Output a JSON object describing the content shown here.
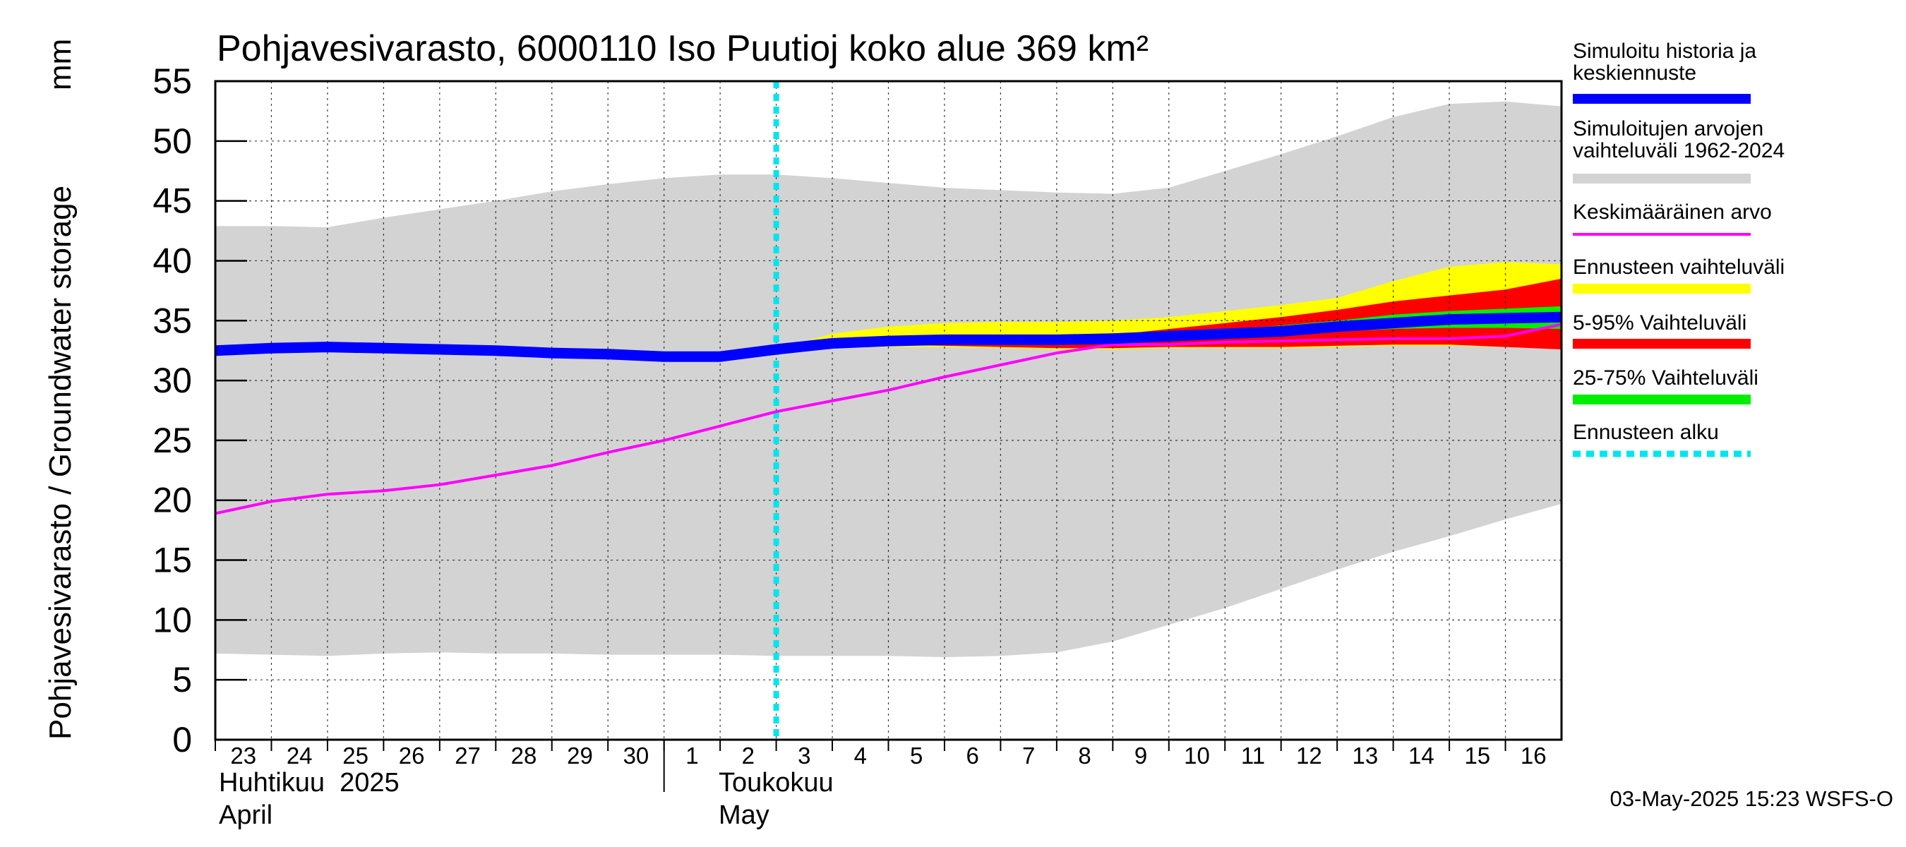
{
  "chart_data": {
    "type": "area",
    "title": "Pohjavesivarasto, 6000110 Iso Puutioj koko alue 369 km²",
    "ylabel": "Pohjavesivarasto / Groundwater storage",
    "yunit": "mm",
    "ylim": [
      0,
      55
    ],
    "yticks": [
      0,
      5,
      10,
      15,
      20,
      25,
      30,
      35,
      40,
      45,
      50,
      55
    ],
    "xlim": [
      "2025-04-23",
      "2025-05-17"
    ],
    "x_tick_labels": [
      "23",
      "24",
      "25",
      "26",
      "27",
      "28",
      "29",
      "30",
      "1",
      "2",
      "3",
      "4",
      "5",
      "6",
      "7",
      "8",
      "9",
      "10",
      "11",
      "12",
      "13",
      "14",
      "15",
      "16"
    ],
    "month_labels": [
      {
        "fi": "Huhtikuu  2025",
        "en": "April"
      },
      {
        "fi": "Toukokuu",
        "en": "May"
      }
    ],
    "grid": true,
    "legend_position": "right",
    "forecast_start": "2025-05-03",
    "timestamp": "03-May-2025 15:23 WSFS-O",
    "legend": [
      {
        "label": "Simuloitu historia ja\nkeskiennuste",
        "color": "#0000ff",
        "style": "thick"
      },
      {
        "label": "Simuloitujen arvojen\nvaihteluväli 1962-2024",
        "color": "#d3d3d3",
        "style": "thick"
      },
      {
        "label": "Keskimääräinen arvo",
        "color": "#ff00ff",
        "style": "thin"
      },
      {
        "label": "Ennusteen vaihteluväli",
        "color": "#ffff00",
        "style": "thick"
      },
      {
        "label": "5-95% Vaihteluväli",
        "color": "#ff0000",
        "style": "thick"
      },
      {
        "label": "25-75% Vaihteluväli",
        "color": "#00ee00",
        "style": "thick"
      },
      {
        "label": "Ennusteen alku",
        "color": "#00e5ee",
        "style": "dotted"
      }
    ],
    "x": [
      "2025-04-23",
      "2025-04-24",
      "2025-04-25",
      "2025-04-26",
      "2025-04-27",
      "2025-04-28",
      "2025-04-29",
      "2025-04-30",
      "2025-05-01",
      "2025-05-02",
      "2025-05-03",
      "2025-05-04",
      "2025-05-05",
      "2025-05-06",
      "2025-05-07",
      "2025-05-08",
      "2025-05-09",
      "2025-05-10",
      "2025-05-11",
      "2025-05-12",
      "2025-05-13",
      "2025-05-14",
      "2025-05-15",
      "2025-05-16",
      "2025-05-17"
    ],
    "historical_range": {
      "min": [
        7.2,
        7.1,
        7.0,
        7.2,
        7.3,
        7.2,
        7.2,
        7.1,
        7.1,
        7.1,
        7.0,
        7.0,
        7.0,
        6.9,
        7.0,
        7.3,
        8.2,
        9.6,
        11.0,
        12.6,
        14.2,
        15.7,
        17.0,
        18.4,
        19.7
      ],
      "max": [
        42.9,
        42.9,
        42.8,
        43.6,
        44.3,
        45.0,
        45.8,
        46.4,
        46.9,
        47.2,
        47.2,
        46.9,
        46.5,
        46.1,
        45.9,
        45.7,
        45.6,
        46.1,
        47.5,
        48.9,
        50.4,
        52.0,
        53.1,
        53.3,
        52.9
      ]
    },
    "series": [
      {
        "name": "Simuloitu historia ja keskiennuste",
        "values": [
          32.5,
          32.7,
          32.8,
          32.7,
          32.6,
          32.5,
          32.3,
          32.2,
          32.0,
          32.0,
          32.6,
          33.1,
          33.3,
          33.4,
          33.4,
          33.4,
          33.5,
          33.7,
          33.9,
          34.1,
          34.5,
          34.8,
          35.1,
          35.2,
          35.3
        ]
      },
      {
        "name": "Keskimääräinen arvo",
        "values": [
          18.9,
          19.9,
          20.5,
          20.8,
          21.3,
          22.1,
          22.9,
          24.0,
          25.0,
          26.2,
          27.4,
          28.3,
          29.2,
          30.3,
          31.3,
          32.3,
          33.0,
          33.0,
          33.2,
          33.3,
          33.4,
          33.5,
          33.5,
          33.7,
          34.7
        ]
      }
    ],
    "forecast_bands": {
      "range_min": [
        32.6,
        32.8,
        32.8,
        32.8,
        32.7,
        32.6,
        32.6,
        32.7,
        32.7,
        32.7,
        32.8,
        32.9,
        32.9,
        32.8,
        32.6
      ],
      "range_max": [
        32.6,
        33.9,
        34.5,
        34.8,
        34.9,
        34.9,
        35.0,
        35.3,
        35.8,
        36.3,
        36.9,
        38.3,
        39.5,
        39.9,
        39.7
      ],
      "p5": [
        32.6,
        32.9,
        33.0,
        32.9,
        32.8,
        32.7,
        32.7,
        32.8,
        32.8,
        32.8,
        32.9,
        33.0,
        33.0,
        32.8,
        32.6
      ],
      "p95": [
        32.6,
        33.2,
        33.5,
        33.6,
        33.6,
        33.7,
        33.8,
        34.3,
        34.8,
        35.3,
        35.9,
        36.6,
        37.1,
        37.6,
        38.5
      ],
      "p25": [
        32.6,
        33.1,
        33.2,
        33.3,
        33.3,
        33.3,
        33.3,
        33.5,
        33.7,
        33.9,
        34.1,
        34.3,
        34.4,
        34.4,
        34.3
      ],
      "p75": [
        32.6,
        33.1,
        33.4,
        33.5,
        33.5,
        33.5,
        33.6,
        33.9,
        34.2,
        34.6,
        35.0,
        35.5,
        35.8,
        36.0,
        36.2
      ]
    }
  }
}
